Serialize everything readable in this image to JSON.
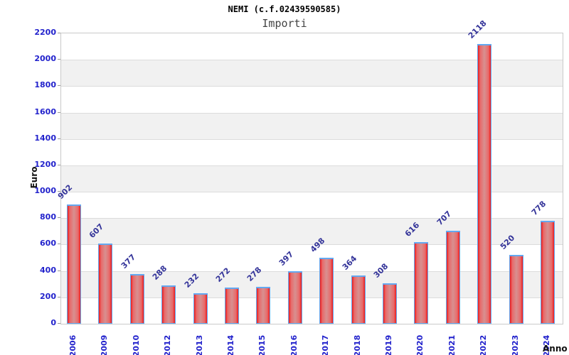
{
  "header": {
    "title": "NEMI (c.f.02439590585)",
    "subtitle": "Importi"
  },
  "chart_data": {
    "type": "bar",
    "title": "NEMI (c.f.02439590585)",
    "subtitle": "Importi",
    "xlabel": "Anno",
    "ylabel": "Euro",
    "categories": [
      "2006",
      "2009",
      "2010",
      "2012",
      "2013",
      "2014",
      "2015",
      "2016",
      "2017",
      "2018",
      "2019",
      "2020",
      "2021",
      "2022",
      "2023",
      "2024"
    ],
    "values": [
      902,
      607,
      377,
      288,
      232,
      272,
      278,
      397,
      498,
      364,
      308,
      616,
      707,
      2118,
      520,
      778
    ],
    "ylim": [
      0,
      2200
    ],
    "ytick_step": 200,
    "grid": true,
    "legend": "none",
    "band_fill": "alternating",
    "colors": {
      "bar_edge": "#ed1c1c",
      "bar_center": "#d89090",
      "bar_border": "#63a8f0",
      "tick_label": "#2222cc",
      "value_label": "#333399",
      "band_gray": "#f1f1f1",
      "band_white": "#ffffff",
      "grid_line": "#dcdcdc",
      "plot_border": "#c9c9c9"
    }
  }
}
